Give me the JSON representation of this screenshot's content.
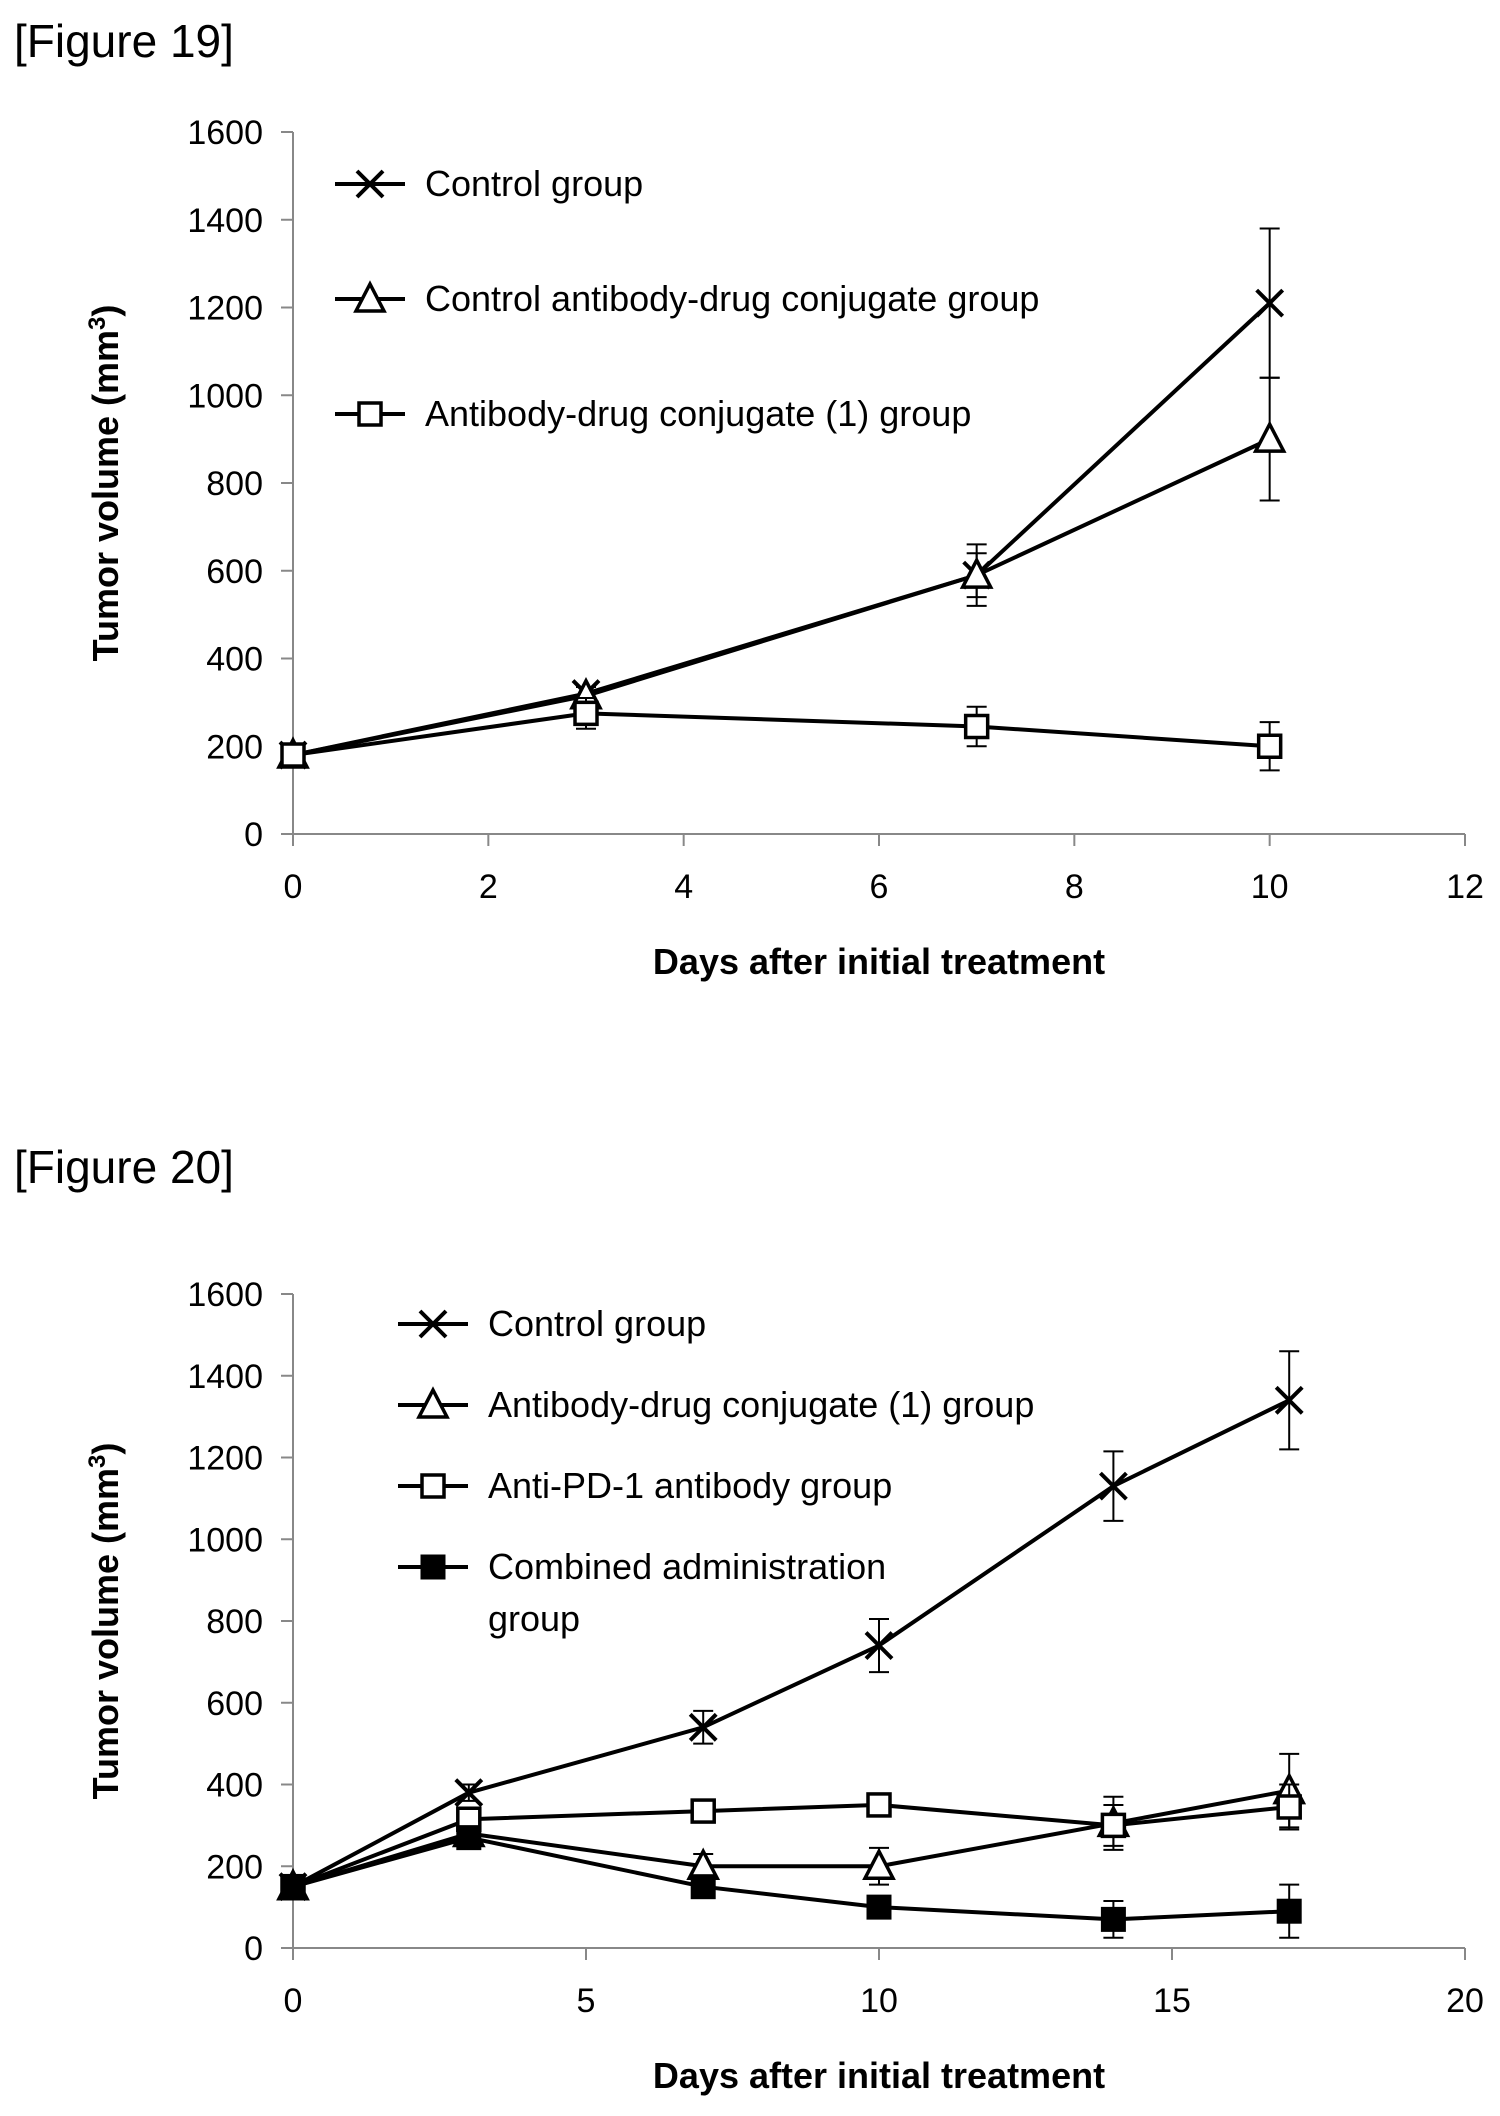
{
  "figures": [
    {
      "label": "[Figure 19]"
    },
    {
      "label": "[Figure 20]"
    }
  ],
  "chart_data": [
    {
      "type": "line",
      "title": "",
      "xlabel": "Days after initial treatment",
      "ylabel": "Tumor volume (mm",
      "ylabel_sup": "3",
      "ylabel_close": ")",
      "xlim": [
        0,
        12
      ],
      "ylim": [
        0,
        1600
      ],
      "xticks": [
        0,
        2,
        4,
        6,
        8,
        10,
        12
      ],
      "yticks": [
        0,
        200,
        400,
        600,
        800,
        1000,
        1200,
        1400,
        1600
      ],
      "legend_position": "top-left",
      "grid": false,
      "series": [
        {
          "name": "Control group",
          "marker": "x",
          "x": [
            0,
            3,
            7,
            10
          ],
          "y": [
            180,
            320,
            590,
            1210
          ],
          "err": [
            0,
            15,
            50,
            170
          ]
        },
        {
          "name": "Control antibody-drug conjugate group",
          "marker": "triangle",
          "x": [
            0,
            3,
            7,
            10
          ],
          "y": [
            180,
            315,
            590,
            900
          ],
          "err": [
            0,
            20,
            70,
            140
          ]
        },
        {
          "name": "Antibody-drug conjugate (1) group",
          "marker": "square",
          "x": [
            0,
            3,
            7,
            10
          ],
          "y": [
            180,
            275,
            245,
            200
          ],
          "err": [
            0,
            35,
            45,
            55
          ]
        }
      ]
    },
    {
      "type": "line",
      "title": "",
      "xlabel": "Days after initial treatment",
      "ylabel": "Tumor volume (mm",
      "ylabel_sup": "3",
      "ylabel_close": ")",
      "xlim": [
        0,
        20
      ],
      "ylim": [
        0,
        1600
      ],
      "xticks": [
        0,
        5,
        10,
        15,
        20
      ],
      "yticks": [
        0,
        200,
        400,
        600,
        800,
        1000,
        1200,
        1400,
        1600
      ],
      "legend_position": "top-left",
      "grid": false,
      "series": [
        {
          "name": "Control group",
          "marker": "x",
          "x": [
            0,
            3,
            7,
            10,
            14,
            17
          ],
          "y": [
            150,
            380,
            540,
            740,
            1130,
            1340
          ],
          "err": [
            0,
            20,
            40,
            65,
            85,
            120
          ]
        },
        {
          "name": "Antibody-drug conjugate (1) group",
          "marker": "triangle",
          "x": [
            0,
            3,
            7,
            10,
            14,
            17
          ],
          "y": [
            150,
            280,
            200,
            200,
            305,
            385
          ],
          "err": [
            0,
            20,
            30,
            45,
            65,
            90
          ]
        },
        {
          "name": "Anti-PD-1 antibody group",
          "marker": "square",
          "x": [
            0,
            3,
            7,
            10,
            14,
            17
          ],
          "y": [
            150,
            315,
            335,
            350,
            300,
            345
          ],
          "err": [
            0,
            20,
            20,
            20,
            50,
            55
          ]
        },
        {
          "name": "Combined administration\ngroup",
          "marker": "filled-square",
          "x": [
            0,
            3,
            7,
            10,
            14,
            17
          ],
          "y": [
            150,
            270,
            150,
            100,
            70,
            90
          ],
          "err": [
            0,
            20,
            20,
            20,
            45,
            65
          ]
        }
      ]
    }
  ]
}
